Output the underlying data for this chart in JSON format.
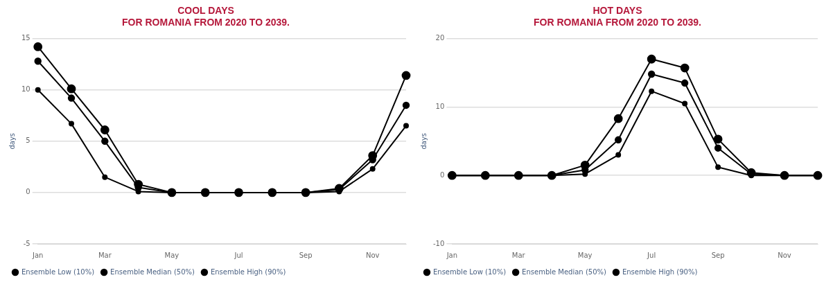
{
  "chart_data": [
    {
      "type": "line",
      "title": "COOL DAYS\nFOR ROMANIA FROM 2020 TO 2039.",
      "ylabel": "days",
      "categories": [
        "Jan",
        null,
        "Mar",
        null,
        "May",
        null,
        "Jul",
        null,
        "Sep",
        null,
        "Nov",
        null
      ],
      "ylim": [
        -5,
        15
      ],
      "yticks": [
        -5,
        0,
        5,
        10,
        15
      ],
      "grid": "y",
      "legend": "bottom",
      "marker": "circle",
      "line_style": "solid",
      "series": [
        {
          "name": "Ensemble Low (10%)",
          "color": "#000000",
          "values": [
            10,
            6.7,
            1.5,
            0.1,
            0,
            0,
            0,
            0,
            0,
            0.1,
            2.3,
            6.5
          ]
        },
        {
          "name": "Ensemble Median (50%)",
          "color": "#000000",
          "values": [
            12.8,
            9.2,
            5,
            0.5,
            0,
            0,
            0,
            0,
            0,
            0.3,
            3.2,
            8.5
          ]
        },
        {
          "name": "Ensemble High (90%)",
          "color": "#000000",
          "values": [
            14.2,
            10.1,
            6.1,
            0.8,
            0,
            0,
            0,
            0,
            0,
            0.4,
            3.6,
            11.4
          ]
        }
      ]
    },
    {
      "type": "line",
      "title": "HOT DAYS\nFOR ROMANIA FROM 2020 TO 2039.",
      "ylabel": "days",
      "categories": [
        "Jan",
        null,
        "Mar",
        null,
        "May",
        null,
        "Jul",
        null,
        "Sep",
        null,
        "Nov",
        null
      ],
      "ylim": [
        -10,
        20
      ],
      "yticks": [
        -10,
        0,
        10,
        20
      ],
      "grid": "y",
      "legend": "bottom",
      "marker": "circle",
      "line_style": "solid",
      "series": [
        {
          "name": "Ensemble Low (10%)",
          "color": "#000000",
          "values": [
            0,
            0,
            0,
            0,
            0.2,
            3,
            12.3,
            10.5,
            1.2,
            0,
            0,
            0
          ]
        },
        {
          "name": "Ensemble Median (50%)",
          "color": "#000000",
          "values": [
            0,
            0,
            0,
            0,
            0.8,
            5.2,
            14.8,
            13.5,
            4,
            0.2,
            0,
            0
          ]
        },
        {
          "name": "Ensemble High (90%)",
          "color": "#000000",
          "values": [
            0,
            0,
            0,
            0,
            1.5,
            8.3,
            17,
            15.7,
            5.3,
            0.4,
            0,
            0
          ]
        }
      ]
    }
  ]
}
